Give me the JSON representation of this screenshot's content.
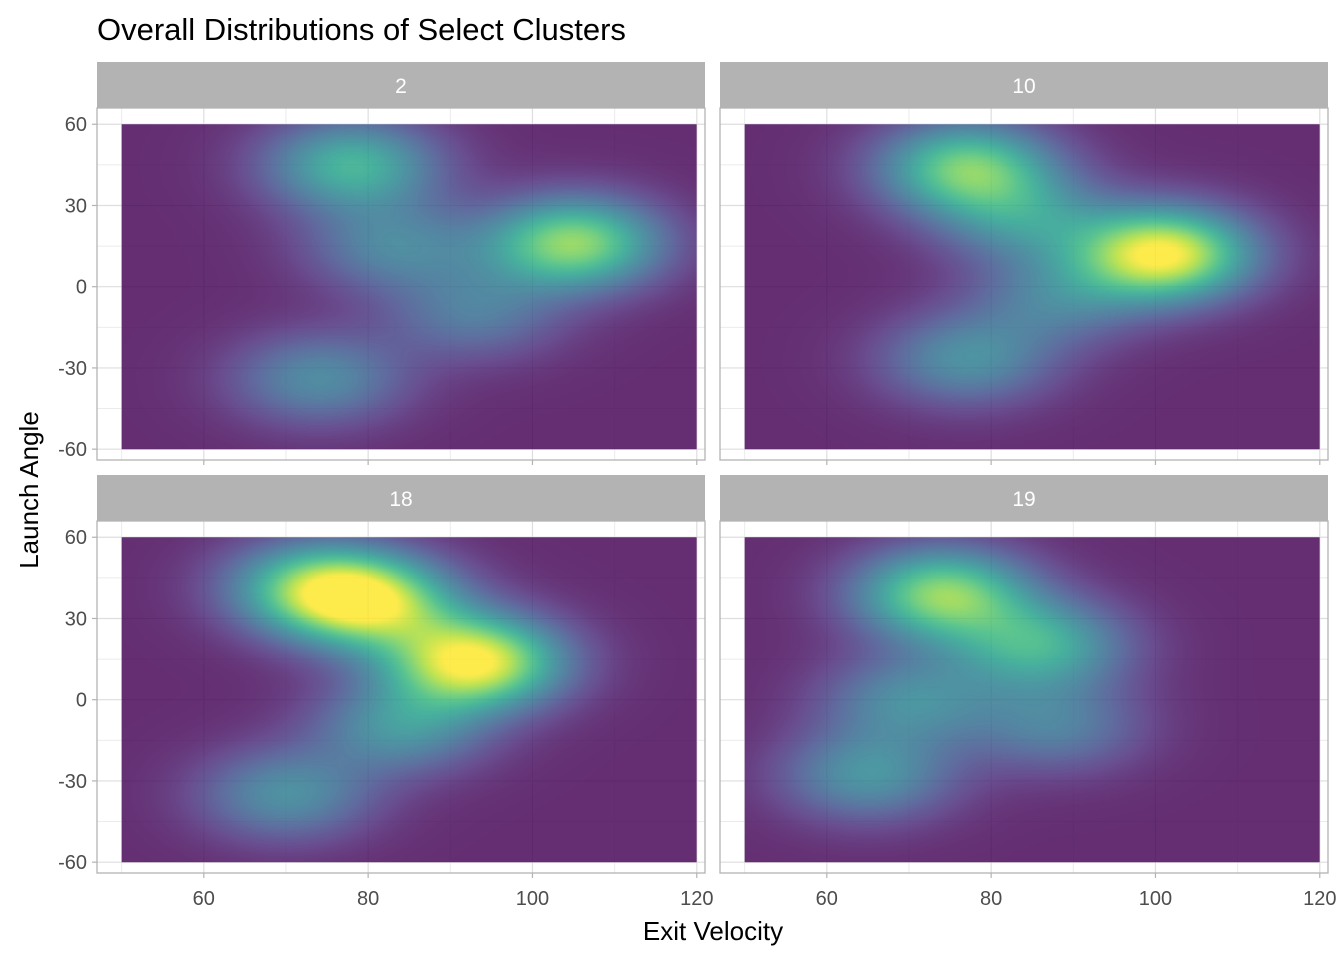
{
  "chart_data": {
    "type": "heatmap",
    "title": "Overall Distributions of Select Clusters",
    "xlabel": "Exit Velocity",
    "ylabel": "Launch Angle",
    "xlim": [
      47,
      121
    ],
    "ylim": [
      -64,
      66
    ],
    "data_extent": {
      "x": [
        50,
        120
      ],
      "y": [
        -60,
        60
      ]
    },
    "x_ticks": [
      60,
      80,
      100,
      120
    ],
    "y_ticks": [
      60,
      30,
      0,
      -30,
      -60
    ],
    "grid": true,
    "colormap": "viridis",
    "opacity": 0.82,
    "panels": [
      {
        "label": "2",
        "peaks": [
          {
            "x": 105,
            "y": 16,
            "density": 0.8
          },
          {
            "x": 78,
            "y": 45,
            "density": 0.58
          },
          {
            "x": 83,
            "y": 15,
            "density": 0.35
          },
          {
            "x": 74,
            "y": -34,
            "density": 0.38
          },
          {
            "x": 93,
            "y": -10,
            "density": 0.3
          }
        ]
      },
      {
        "label": "10",
        "peaks": [
          {
            "x": 101,
            "y": 12,
            "density": 1.0
          },
          {
            "x": 77,
            "y": 44,
            "density": 0.72
          },
          {
            "x": 84,
            "y": 25,
            "density": 0.38
          },
          {
            "x": 77,
            "y": -27,
            "density": 0.4
          },
          {
            "x": 88,
            "y": -5,
            "density": 0.3
          }
        ]
      },
      {
        "label": "18",
        "peaks": [
          {
            "x": 93,
            "y": 14,
            "density": 1.0
          },
          {
            "x": 80,
            "y": 36,
            "density": 0.82
          },
          {
            "x": 73,
            "y": 42,
            "density": 0.55
          },
          {
            "x": 84,
            "y": -10,
            "density": 0.42
          },
          {
            "x": 70,
            "y": -35,
            "density": 0.4
          }
        ]
      },
      {
        "label": "19",
        "peaks": [
          {
            "x": 74,
            "y": 39,
            "density": 0.78
          },
          {
            "x": 86,
            "y": 20,
            "density": 0.55
          },
          {
            "x": 70,
            "y": 0,
            "density": 0.38
          },
          {
            "x": 65,
            "y": -28,
            "density": 0.42
          },
          {
            "x": 88,
            "y": -10,
            "density": 0.32
          }
        ]
      }
    ]
  }
}
